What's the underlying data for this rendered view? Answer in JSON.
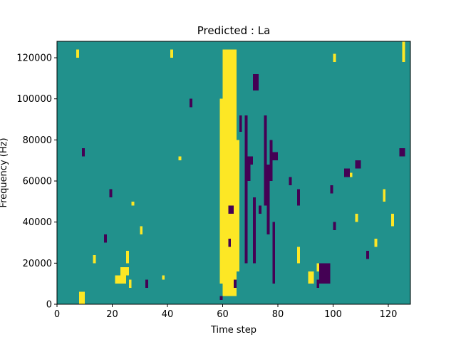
{
  "chart_data": {
    "type": "heatmap",
    "title": "Predicted : La",
    "xlabel": "Time step",
    "ylabel": "Frequency (Hz)",
    "xlim": [
      0,
      128
    ],
    "ylim": [
      0,
      128000
    ],
    "x_ticks": [
      0,
      20,
      40,
      60,
      80,
      100,
      120
    ],
    "y_ticks": [
      0,
      20000,
      40000,
      60000,
      80000,
      100000,
      120000
    ],
    "n_time_steps": 128,
    "n_freq_bins": 64,
    "colors": {
      "low": "#440154",
      "mid": "#21918c",
      "high": "#fde725"
    },
    "background_level": "mid",
    "high_blocks": [
      [
        60,
        65,
        4000,
        124000
      ],
      [
        59,
        60,
        10000,
        100000
      ],
      [
        65,
        66,
        16000,
        80000
      ],
      [
        8,
        10,
        0,
        6000
      ],
      [
        21,
        25,
        10000,
        14000
      ],
      [
        23,
        26,
        14000,
        18000
      ],
      [
        25,
        26,
        20000,
        26000
      ],
      [
        26,
        27,
        8000,
        12000
      ],
      [
        38,
        39,
        12000,
        14000
      ],
      [
        44,
        45,
        70000,
        72000
      ],
      [
        106,
        107,
        62000,
        64000
      ],
      [
        7,
        8,
        120000,
        124000
      ],
      [
        41,
        42,
        120000,
        124000
      ],
      [
        61,
        63,
        100000,
        110000
      ],
      [
        27,
        28,
        48000,
        50000
      ],
      [
        30,
        31,
        34000,
        38000
      ],
      [
        13,
        14,
        20000,
        24000
      ],
      [
        100,
        101,
        118000,
        122000
      ],
      [
        125,
        126,
        118000,
        128000
      ],
      [
        91,
        93,
        10000,
        16000
      ],
      [
        87,
        88,
        20000,
        28000
      ],
      [
        108,
        109,
        40000,
        44000
      ],
      [
        115,
        116,
        28000,
        32000
      ],
      [
        118,
        119,
        50000,
        56000
      ],
      [
        121,
        122,
        38000,
        44000
      ],
      [
        94,
        95,
        16000,
        20000
      ]
    ],
    "low_blocks": [
      [
        59,
        60,
        2000,
        4000
      ],
      [
        68,
        69,
        20000,
        92000
      ],
      [
        71,
        72,
        20000,
        52000
      ],
      [
        78,
        79,
        10000,
        40000
      ],
      [
        76,
        77,
        34000,
        68000
      ],
      [
        75,
        76,
        48000,
        92000
      ],
      [
        77,
        78,
        60000,
        80000
      ],
      [
        95,
        99,
        10000,
        20000
      ],
      [
        94,
        95,
        8000,
        12000
      ],
      [
        73,
        74,
        44000,
        48000
      ],
      [
        71,
        73,
        104000,
        112000
      ],
      [
        66,
        67,
        84000,
        92000
      ],
      [
        9,
        10,
        72000,
        76000
      ],
      [
        124,
        126,
        72000,
        76000
      ],
      [
        69,
        70,
        60000,
        72000
      ],
      [
        62,
        64,
        44000,
        48000
      ],
      [
        78,
        80,
        70000,
        74000
      ],
      [
        62,
        63,
        28000,
        32000
      ],
      [
        70,
        71,
        68000,
        72000
      ],
      [
        48,
        49,
        96000,
        100000
      ],
      [
        64,
        65,
        8000,
        12000
      ],
      [
        32,
        33,
        8000,
        12000
      ],
      [
        19,
        20,
        52000,
        56000
      ],
      [
        17,
        18,
        30000,
        34000
      ],
      [
        87,
        88,
        48000,
        56000
      ],
      [
        84,
        85,
        58000,
        62000
      ],
      [
        99,
        100,
        54000,
        58000
      ],
      [
        100,
        101,
        36000,
        40000
      ],
      [
        104,
        106,
        62000,
        66000
      ],
      [
        108,
        110,
        66000,
        70000
      ],
      [
        112,
        113,
        22000,
        26000
      ]
    ]
  }
}
